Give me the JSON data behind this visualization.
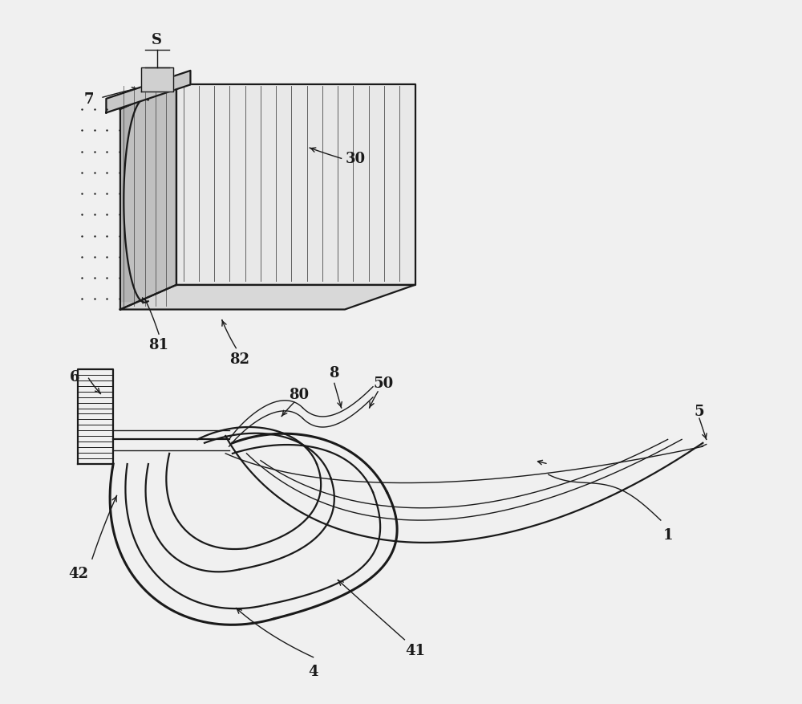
{
  "bg_color": "#f0f0f0",
  "line_color": "#1a1a1a",
  "figsize": [
    10.0,
    8.78
  ],
  "dpi": 100
}
